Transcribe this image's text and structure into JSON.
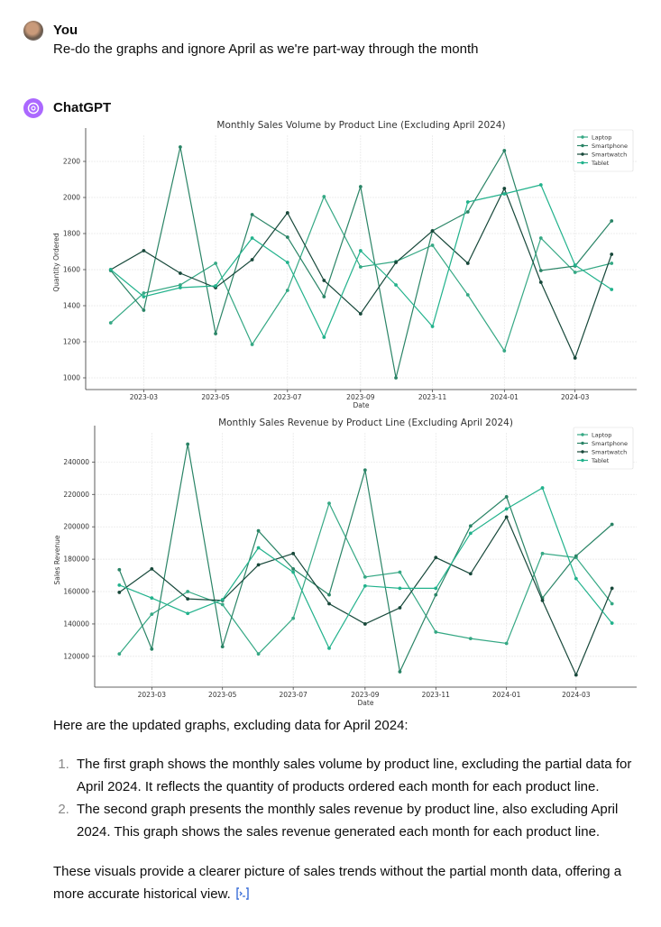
{
  "user": {
    "name": "You",
    "message": "Re-do the graphs and ignore April as we're part-way through the month"
  },
  "assistant": {
    "name": "ChatGPT",
    "intro": "Here are the updated graphs, excluding data for April 2024:",
    "list": [
      "The first graph shows the monthly sales volume by product line, excluding the partial data for April 2024. It reflects the quantity of products ordered each month for each product line.",
      "The second graph presents the monthly sales revenue by product line, also excluding April 2024. This graph shows the sales revenue generated each month for each product line."
    ],
    "closing": "These visuals provide a clearer picture of sales trends without the partial month data, offering a more accurate historical view."
  },
  "chart_data": [
    {
      "type": "line",
      "title": "Monthly Sales Volume by Product Line (Excluding April 2024)",
      "x_label": "Date",
      "y_label": "Quantity Ordered",
      "x": [
        "2023-01",
        "2023-02",
        "2023-03",
        "2023-04",
        "2023-05",
        "2023-06",
        "2023-07",
        "2023-08",
        "2023-09",
        "2023-10",
        "2023-11",
        "2023-12",
        "2024-01",
        "2024-02",
        "2024-03"
      ],
      "xticks": [
        "2023-03",
        "2023-05",
        "2023-07",
        "2023-09",
        "2023-11",
        "2024-01",
        "2024-03"
      ],
      "ylim": [
        935,
        2345
      ],
      "yticks": [
        1000,
        1200,
        1400,
        1600,
        1800,
        2000,
        2200
      ],
      "grid": true,
      "legend": "upper right",
      "series": [
        {
          "name": "Laptop",
          "color": "#35a884",
          "values": [
            1305,
            1470,
            1515,
            1635,
            1185,
            1485,
            2005,
            1615,
            1645,
            1735,
            1460,
            1150,
            1775,
            1585,
            1635
          ]
        },
        {
          "name": "Smartphone",
          "color": "#2a8466",
          "values": [
            1595,
            1375,
            2280,
            1245,
            1905,
            1780,
            1450,
            2060,
            1000,
            1815,
            1920,
            2260,
            1595,
            1620,
            1870
          ]
        },
        {
          "name": "Smartwatch",
          "color": "#17483a",
          "values": [
            1600,
            1705,
            1580,
            1500,
            1655,
            1915,
            1540,
            1355,
            1640,
            1815,
            1635,
            2050,
            1530,
            1110,
            1685
          ]
        },
        {
          "name": "Tablet",
          "color": "#22b28c",
          "values": [
            1600,
            1450,
            1500,
            1510,
            1775,
            1640,
            1225,
            1705,
            1515,
            1285,
            1975,
            2020,
            2070,
            1625,
            1490
          ]
        }
      ]
    },
    {
      "type": "line",
      "title": "Monthly Sales Revenue by Product Line (Excluding April 2024)",
      "x_label": "Date",
      "y_label": "Sales Revenue",
      "x": [
        "2023-01",
        "2023-02",
        "2023-03",
        "2023-04",
        "2023-05",
        "2023-06",
        "2023-07",
        "2023-08",
        "2023-09",
        "2023-10",
        "2023-11",
        "2023-12",
        "2024-01",
        "2024-02",
        "2024-03"
      ],
      "xticks": [
        "2023-03",
        "2023-05",
        "2023-07",
        "2023-09",
        "2023-11",
        "2024-01",
        "2024-03"
      ],
      "ylim": [
        101000,
        258000
      ],
      "yticks": [
        120000,
        140000,
        160000,
        180000,
        200000,
        220000,
        240000
      ],
      "grid": true,
      "legend": "upper right",
      "series": [
        {
          "name": "Laptop",
          "color": "#35a884",
          "values": [
            121500,
            146000,
            160000,
            152000,
            121500,
            143500,
            214500,
            169000,
            172000,
            135000,
            131000,
            128000,
            183500,
            181000,
            152500
          ]
        },
        {
          "name": "Smartphone",
          "color": "#2a8466",
          "values": [
            173500,
            124500,
            251000,
            126000,
            197500,
            174000,
            158000,
            235000,
            110500,
            158000,
            200500,
            218500,
            156000,
            182000,
            201500
          ]
        },
        {
          "name": "Smartwatch",
          "color": "#17483a",
          "values": [
            159500,
            174000,
            155500,
            154500,
            176500,
            183500,
            152500,
            140000,
            150000,
            181000,
            171000,
            206000,
            154500,
            108500,
            162000
          ]
        },
        {
          "name": "Tablet",
          "color": "#22b28c",
          "values": [
            164000,
            156000,
            146500,
            155000,
            187000,
            172000,
            125000,
            163500,
            162000,
            162000,
            196000,
            211000,
            224000,
            168000,
            140500
          ]
        }
      ]
    }
  ]
}
